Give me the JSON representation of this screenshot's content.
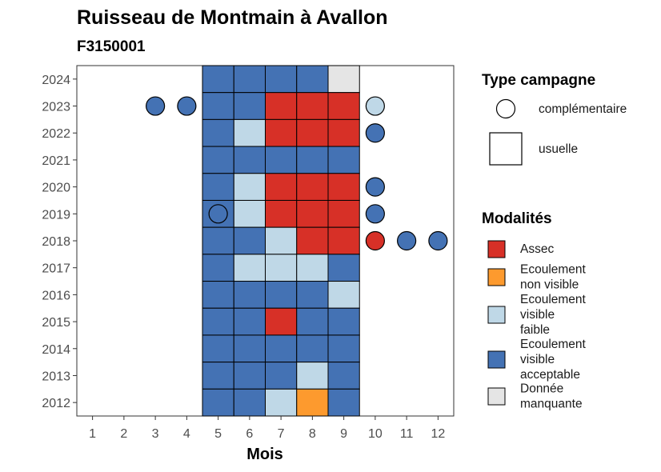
{
  "chart_data": {
    "type": "heatmap",
    "title": "Ruisseau de Montmain à Avallon",
    "subtitle": "F3150001",
    "xlabel": "Mois",
    "ylabel": "",
    "x_ticks": [
      1,
      2,
      3,
      4,
      5,
      6,
      7,
      8,
      9,
      10,
      11,
      12
    ],
    "y_ticks": [
      2012,
      2013,
      2014,
      2015,
      2016,
      2017,
      2018,
      2019,
      2020,
      2021,
      2022,
      2023,
      2024
    ],
    "xlim": [
      0.5,
      12.5
    ],
    "ylim": [
      2011.5,
      2024.5
    ],
    "grid": false,
    "categories": {
      "assec": {
        "label": "Assec",
        "color": "#d73027"
      },
      "nonvisible": {
        "label": "Ecoulement non visible",
        "label_lines": [
          "Ecoulement",
          "non visible"
        ],
        "color": "#fd9a2e"
      },
      "faible": {
        "label": "Ecoulement visible faible",
        "label_lines": [
          "Ecoulement",
          "visible",
          "faible"
        ],
        "color": "#bfd8e7"
      },
      "acceptable": {
        "label": "Ecoulement visible acceptable",
        "label_lines": [
          "Ecoulement",
          "visible",
          "acceptable"
        ],
        "color": "#4472b4"
      },
      "manquante": {
        "label": "Donnée manquante",
        "label_lines": [
          "Donnée",
          "manquante"
        ],
        "color": "#e5e5e5"
      }
    },
    "usuelle": [
      {
        "year": 2024,
        "months": [
          "acceptable",
          "acceptable",
          "acceptable",
          "acceptable",
          "manquante"
        ]
      },
      {
        "year": 2023,
        "months": [
          "acceptable",
          "acceptable",
          "assec",
          "assec",
          "assec"
        ]
      },
      {
        "year": 2022,
        "months": [
          "acceptable",
          "faible",
          "assec",
          "assec",
          "assec"
        ]
      },
      {
        "year": 2021,
        "months": [
          "acceptable",
          "acceptable",
          "acceptable",
          "acceptable",
          "acceptable"
        ]
      },
      {
        "year": 2020,
        "months": [
          "acceptable",
          "faible",
          "assec",
          "assec",
          "assec"
        ]
      },
      {
        "year": 2019,
        "months": [
          "acceptable",
          "faible",
          "assec",
          "assec",
          "assec"
        ]
      },
      {
        "year": 2018,
        "months": [
          "acceptable",
          "acceptable",
          "faible",
          "assec",
          "assec"
        ]
      },
      {
        "year": 2017,
        "months": [
          "acceptable",
          "faible",
          "faible",
          "faible",
          "acceptable"
        ]
      },
      {
        "year": 2016,
        "months": [
          "acceptable",
          "acceptable",
          "acceptable",
          "acceptable",
          "faible"
        ]
      },
      {
        "year": 2015,
        "months": [
          "acceptable",
          "acceptable",
          "assec",
          "acceptable",
          "acceptable"
        ]
      },
      {
        "year": 2014,
        "months": [
          "acceptable",
          "acceptable",
          "acceptable",
          "acceptable",
          "acceptable"
        ]
      },
      {
        "year": 2013,
        "months": [
          "acceptable",
          "acceptable",
          "acceptable",
          "faible",
          "acceptable"
        ]
      },
      {
        "year": 2012,
        "months": [
          "acceptable",
          "acceptable",
          "faible",
          "nonvisible",
          "acceptable"
        ]
      }
    ],
    "usuelle_months": [
      5,
      6,
      7,
      8,
      9
    ],
    "complementaire": [
      {
        "year": 2023,
        "month": 3,
        "cat": "acceptable"
      },
      {
        "year": 2023,
        "month": 4,
        "cat": "acceptable"
      },
      {
        "year": 2023,
        "month": 10,
        "cat": "faible"
      },
      {
        "year": 2022,
        "month": 10,
        "cat": "acceptable"
      },
      {
        "year": 2020,
        "month": 10,
        "cat": "acceptable"
      },
      {
        "year": 2019,
        "month": 5,
        "cat": "acceptable"
      },
      {
        "year": 2019,
        "month": 10,
        "cat": "acceptable"
      },
      {
        "year": 2018,
        "month": 10,
        "cat": "assec"
      },
      {
        "year": 2018,
        "month": 11,
        "cat": "acceptable"
      },
      {
        "year": 2018,
        "month": 12,
        "cat": "acceptable"
      }
    ],
    "legend": {
      "type_title": "Type campagne",
      "type_items": [
        {
          "key": "complementaire",
          "label": "complémentaire",
          "shape": "circle"
        },
        {
          "key": "usuelle",
          "label": "usuelle",
          "shape": "square"
        }
      ],
      "mod_title": "Modalités",
      "mod_order": [
        "assec",
        "nonvisible",
        "faible",
        "acceptable",
        "manquante"
      ],
      "position": "right"
    }
  }
}
